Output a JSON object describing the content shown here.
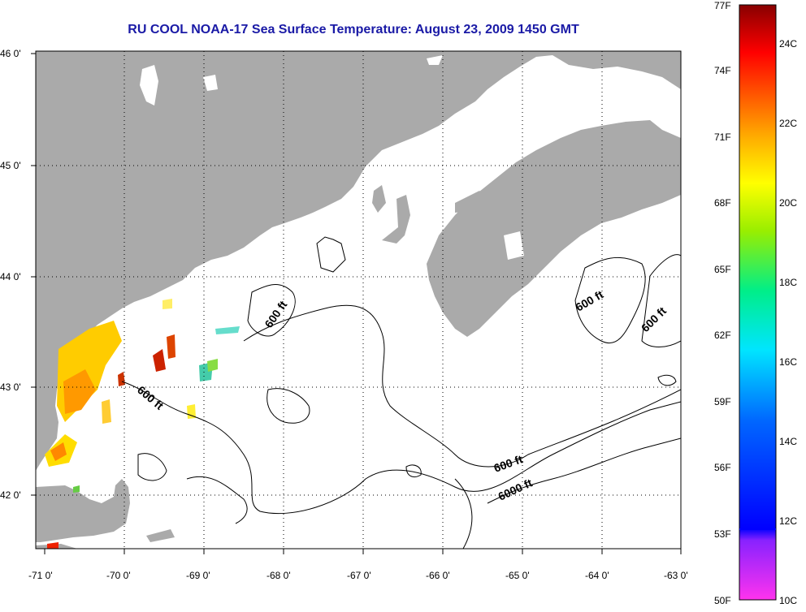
{
  "title": "RU COOL  NOAA-17  Sea Surface Temperature:  August 23, 2009 1450 GMT",
  "axes": {
    "x_ticks": [
      "-71 0'",
      "-70 0'",
      "-69 0'",
      "-68 0'",
      "-67 0'",
      "-66 0'",
      "-65 0'",
      "-64 0'",
      "-63 0'"
    ],
    "y_ticks": [
      "46 0'",
      "45 0'",
      "44 0'",
      "43 0'",
      "42 0'"
    ]
  },
  "contour_labels": [
    "600 ft",
    "600 ft",
    "600 ft",
    "600 ft",
    "600 ft",
    "6000 ft"
  ],
  "colorbar": {
    "fahrenheit": [
      "77F",
      "74F",
      "71F",
      "68F",
      "65F",
      "62F",
      "59F",
      "56F",
      "53F",
      "50F"
    ],
    "celsius": [
      "24C",
      "22C",
      "20C",
      "18C",
      "16C",
      "14C",
      "12C",
      "10C"
    ]
  },
  "colors": {
    "land": "#aaaaaa",
    "title": "#1a1aa6"
  }
}
